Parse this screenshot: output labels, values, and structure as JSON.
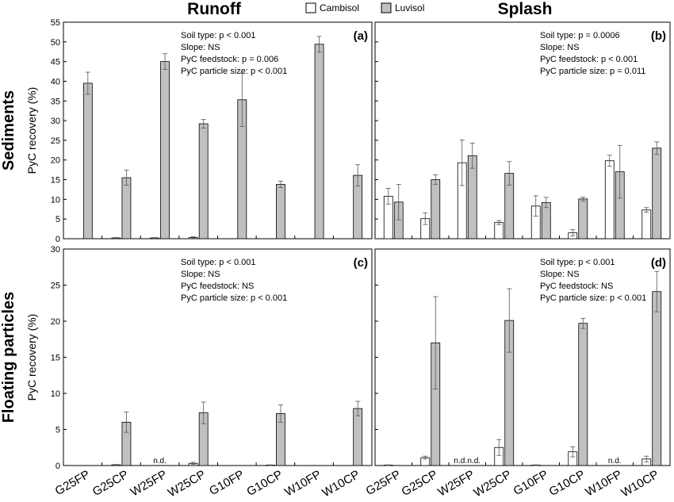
{
  "chart_data": {
    "type": "bar",
    "column_titles": [
      "Runoff",
      "Splash"
    ],
    "row_titles": [
      "Sediments",
      "Floating particles"
    ],
    "legend": [
      {
        "name": "Cambisol",
        "color": "#ffffff"
      },
      {
        "name": "Luvisol",
        "color": "#c0c0c0"
      }
    ],
    "categories": [
      "G25FP",
      "G25CP",
      "W25FP",
      "W25CP",
      "G10FP",
      "G10CP",
      "W10FP",
      "W10CP"
    ],
    "not_detected_label": "n.d.",
    "panels": [
      {
        "tag": "(a)",
        "column": "Runoff",
        "row": "Sediments",
        "ylabel": "PyC recovery (%)",
        "ylim": [
          0,
          55
        ],
        "yticks": [
          0,
          5,
          10,
          15,
          20,
          25,
          30,
          35,
          40,
          45,
          50,
          55
        ],
        "stats": [
          "Soil type: p < 0.001",
          "Slope: NS",
          "PyC feedstock: p = 0.006",
          "PyC particle size: p < 0.001"
        ],
        "series": [
          {
            "name": "Cambisol",
            "values": [
              0,
              0.2,
              0.2,
              0.3,
              0,
              0,
              0,
              0
            ],
            "errors": [
              0,
              0.1,
              0.1,
              0.2,
              0,
              0,
              0,
              0
            ]
          },
          {
            "name": "Luvisol",
            "values": [
              39.5,
              15.5,
              45.0,
              29.2,
              35.3,
              13.8,
              49.4,
              16.1
            ],
            "errors": [
              2.8,
              1.9,
              2.0,
              1.1,
              6.8,
              0.8,
              2.0,
              2.7
            ]
          }
        ],
        "not_detected": []
      },
      {
        "tag": "(b)",
        "column": "Splash",
        "row": "Sediments",
        "ylabel": "",
        "ylim": [
          0,
          55
        ],
        "yticks": [
          0,
          5,
          10,
          15,
          20,
          25,
          30,
          35,
          40,
          45,
          50,
          55
        ],
        "stats": [
          "Soil type: p = 0.0006",
          "Slope: NS",
          "PyC feedstock: p < 0.001",
          "PyC particle size: p = 0.011"
        ],
        "series": [
          {
            "name": "Cambisol",
            "values": [
              10.8,
              5.1,
              19.3,
              4.1,
              8.3,
              1.5,
              19.8,
              7.3
            ],
            "errors": [
              2.0,
              1.5,
              5.8,
              0.5,
              2.6,
              0.8,
              1.4,
              0.6
            ]
          },
          {
            "name": "Luvisol",
            "values": [
              9.3,
              15.0,
              21.1,
              16.6,
              9.2,
              10.1,
              17.0,
              23.0
            ],
            "errors": [
              4.5,
              1.2,
              3.2,
              3.0,
              1.3,
              0.5,
              6.7,
              1.6
            ]
          }
        ],
        "not_detected": []
      },
      {
        "tag": "(c)",
        "column": "Runoff",
        "row": "Floating particles",
        "ylabel": "PyC recovery (%)",
        "ylim": [
          0,
          30
        ],
        "yticks": [
          0,
          5,
          10,
          15,
          20,
          25,
          30
        ],
        "stats": [
          "Soil type: p < 0.001",
          "Slope: NS",
          "PyC feedstock: NS",
          "PyC particle size: p < 0.001"
        ],
        "series": [
          {
            "name": "Cambisol",
            "values": [
              0,
              0.1,
              0,
              0.3,
              0,
              0.05,
              0,
              0
            ],
            "errors": [
              0,
              0.05,
              0,
              0.15,
              0,
              0.05,
              0,
              0
            ]
          },
          {
            "name": "Luvisol",
            "values": [
              0,
              6.0,
              0,
              7.3,
              0,
              7.2,
              0,
              7.9
            ],
            "errors": [
              0,
              1.4,
              0,
              1.5,
              0,
              1.2,
              0,
              1.0
            ]
          }
        ],
        "not_detected": [
          {
            "category": "W25FP",
            "series": "both"
          }
        ]
      },
      {
        "tag": "(d)",
        "column": "Splash",
        "row": "Floating particles",
        "ylabel": "",
        "ylim": [
          0,
          30
        ],
        "yticks": [
          0,
          5,
          10,
          15,
          20,
          25,
          30
        ],
        "stats": [
          "Soil type: p < 0.001",
          "Slope: NS",
          "PyC feedstock: NS",
          "PyC particle size: p < 0.001"
        ],
        "series": [
          {
            "name": "Cambisol",
            "values": [
              0.05,
              1.1,
              0,
              2.5,
              0.05,
              1.9,
              0,
              0.9
            ],
            "errors": [
              0.05,
              0.2,
              0,
              1.1,
              0.05,
              0.7,
              0,
              0.4
            ]
          },
          {
            "name": "Luvisol",
            "values": [
              0,
              17.0,
              0,
              20.1,
              0,
              19.7,
              0,
              24.1
            ],
            "errors": [
              0,
              6.4,
              0,
              4.4,
              0,
              0.7,
              0,
              2.8
            ]
          }
        ],
        "not_detected": [
          {
            "category": "W25FP",
            "series": "Cambisol"
          },
          {
            "category": "W25FP",
            "series": "Luvisol"
          },
          {
            "category": "W10FP",
            "series": "both"
          }
        ]
      }
    ]
  }
}
